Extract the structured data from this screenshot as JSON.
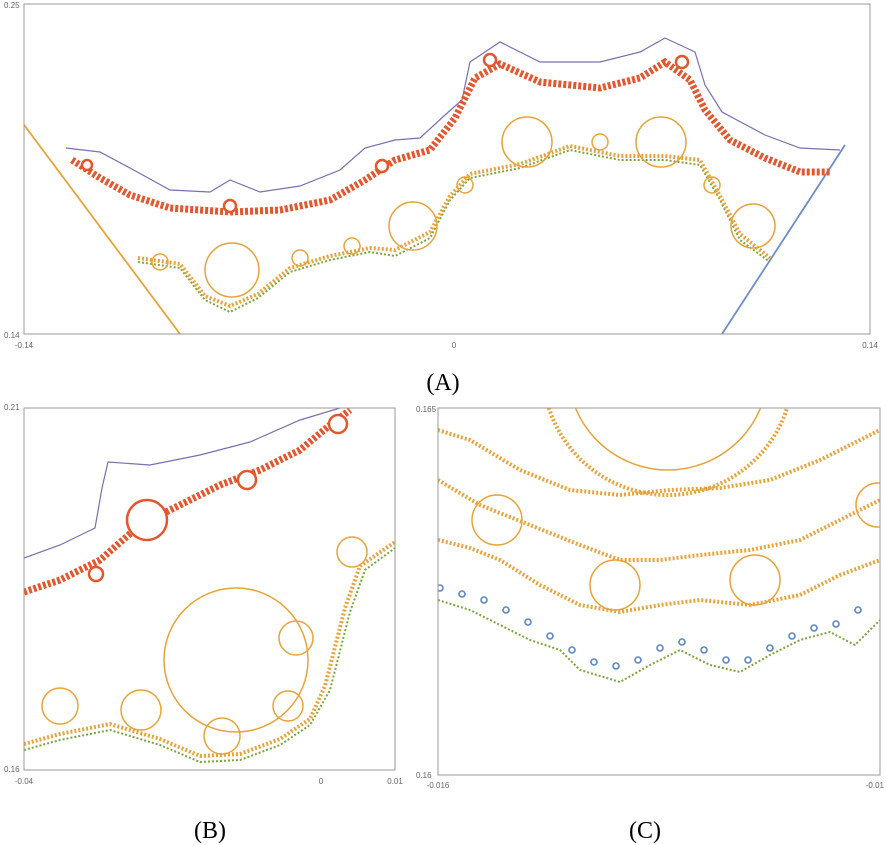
{
  "figure": {
    "panels": [
      {
        "label": "(A)",
        "xticks": [
          "-0.14",
          "0",
          "0.14"
        ],
        "yticks": [
          "0.25",
          "0.14"
        ]
      },
      {
        "label": "(B)",
        "xticks": [
          "-0.04",
          "0",
          "0.01"
        ],
        "yticks": [
          "0.21",
          "0.16"
        ]
      },
      {
        "label": "(C)",
        "xticks": [
          "-0.016",
          "-0.01"
        ],
        "yticks": [
          "0.165",
          "0.16"
        ]
      }
    ]
  }
}
